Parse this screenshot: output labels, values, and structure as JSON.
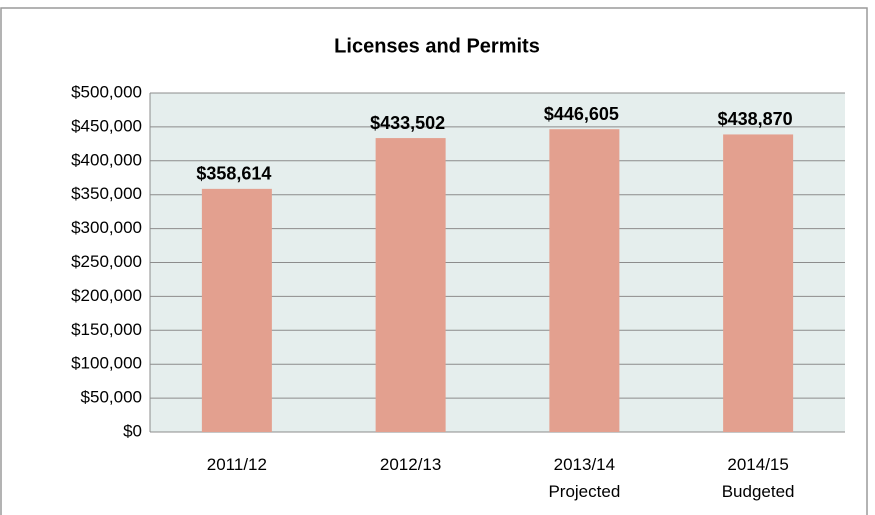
{
  "chart_data": {
    "type": "bar",
    "title": "Licenses and Permits",
    "categories": [
      "2011/12",
      "2012/13",
      "2013/14\nProjected",
      "2014/15\nBudgeted"
    ],
    "values": [
      358614,
      433502,
      446605,
      438870
    ],
    "value_labels": [
      "$358,614",
      "$433,502",
      "$446,605",
      "$438,870"
    ],
    "color": "#e3a08f",
    "ylim": [
      0,
      500000
    ],
    "yticks": [
      {
        "value": 0,
        "label": "$0"
      },
      {
        "value": 50000,
        "label": "$50,000"
      },
      {
        "value": 100000,
        "label": "$100,000"
      },
      {
        "value": 150000,
        "label": "$150,000"
      },
      {
        "value": 200000,
        "label": "$200,000"
      },
      {
        "value": 250000,
        "label": "$250,000"
      },
      {
        "value": 300000,
        "label": "$300,000"
      },
      {
        "value": 350000,
        "label": "$350,000"
      },
      {
        "value": 400000,
        "label": "$400,000"
      },
      {
        "value": 450000,
        "label": "$450,000"
      },
      {
        "value": 500000,
        "label": "$500,000"
      }
    ],
    "grid": true
  }
}
